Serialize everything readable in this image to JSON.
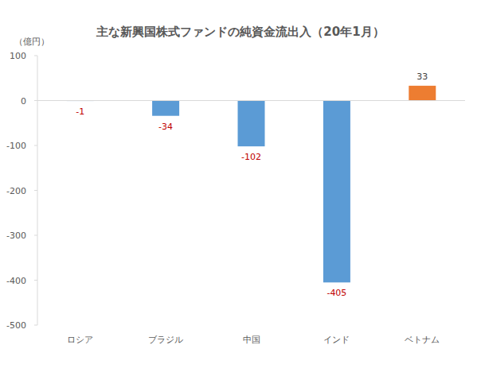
{
  "chart_data": {
    "type": "bar",
    "title": "主な新興国株式ファンドの純資金流出入（20年1月）",
    "y_label": "（億円）",
    "categories": [
      "ロシア",
      "ブラジル",
      "中国",
      "インド",
      "ベトナム"
    ],
    "values": [
      -1,
      -34,
      -102,
      -405,
      33
    ],
    "colors": [
      "#5b9bd5",
      "#5b9bd5",
      "#5b9bd5",
      "#5b9bd5",
      "#ed7d31"
    ],
    "ylim": [
      -500,
      100
    ],
    "yticks": [
      -500,
      -400,
      -300,
      -200,
      -100,
      0,
      100
    ],
    "grid": false,
    "data_labels": true
  }
}
